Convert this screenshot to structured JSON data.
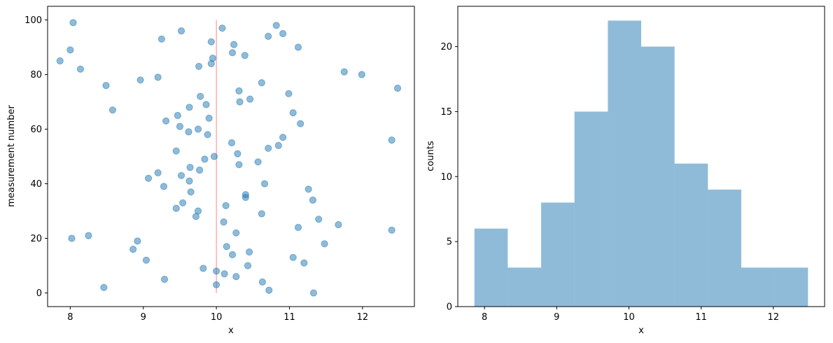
{
  "colors": {
    "points": "#1f77b4",
    "bars": "#1f77b4",
    "refline": "#ff9999",
    "axes": "#000000"
  },
  "chart_data": [
    {
      "type": "scatter",
      "xlabel": "x",
      "ylabel": "measurement number",
      "xlim": [
        7.69,
        12.71
      ],
      "ylim": [
        -5,
        105
      ],
      "xticks": [
        8,
        9,
        10,
        11,
        12
      ],
      "yticks": [
        0,
        20,
        40,
        60,
        80,
        100
      ],
      "grid": false,
      "reference_line": {
        "x": 10,
        "y_from": 0,
        "y_to": 100
      },
      "points": [
        [
          11.33,
          0
        ],
        [
          10.72,
          1
        ],
        [
          8.46,
          2
        ],
        [
          10.0,
          3
        ],
        [
          10.63,
          4
        ],
        [
          9.29,
          5
        ],
        [
          10.27,
          6
        ],
        [
          10.11,
          7
        ],
        [
          10.0,
          8
        ],
        [
          9.82,
          9
        ],
        [
          10.43,
          10
        ],
        [
          11.2,
          11
        ],
        [
          9.04,
          12
        ],
        [
          11.05,
          13
        ],
        [
          10.22,
          14
        ],
        [
          10.45,
          15
        ],
        [
          8.86,
          16
        ],
        [
          10.14,
          17
        ],
        [
          11.48,
          18
        ],
        [
          8.92,
          19
        ],
        [
          8.02,
          20
        ],
        [
          8.25,
          21
        ],
        [
          10.27,
          22
        ],
        [
          12.4,
          23
        ],
        [
          11.12,
          24
        ],
        [
          11.67,
          25
        ],
        [
          10.1,
          26
        ],
        [
          11.4,
          27
        ],
        [
          9.72,
          28
        ],
        [
          10.62,
          29
        ],
        [
          9.75,
          30
        ],
        [
          9.45,
          31
        ],
        [
          10.13,
          32
        ],
        [
          9.54,
          33
        ],
        [
          11.32,
          34
        ],
        [
          10.4,
          35
        ],
        [
          10.4,
          36
        ],
        [
          9.65,
          37
        ],
        [
          11.26,
          38
        ],
        [
          9.28,
          39
        ],
        [
          10.66,
          40
        ],
        [
          9.63,
          41
        ],
        [
          9.07,
          42
        ],
        [
          9.52,
          43
        ],
        [
          9.2,
          44
        ],
        [
          9.77,
          45
        ],
        [
          9.64,
          46
        ],
        [
          10.31,
          47
        ],
        [
          10.57,
          48
        ],
        [
          9.84,
          49
        ],
        [
          9.97,
          50
        ],
        [
          10.29,
          51
        ],
        [
          9.45,
          52
        ],
        [
          10.71,
          53
        ],
        [
          10.85,
          54
        ],
        [
          10.21,
          55
        ],
        [
          12.4,
          56
        ],
        [
          10.91,
          57
        ],
        [
          9.88,
          58
        ],
        [
          9.62,
          59
        ],
        [
          9.75,
          60
        ],
        [
          9.5,
          61
        ],
        [
          11.15,
          62
        ],
        [
          9.31,
          63
        ],
        [
          9.9,
          64
        ],
        [
          9.47,
          65
        ],
        [
          11.05,
          66
        ],
        [
          8.58,
          67
        ],
        [
          9.63,
          68
        ],
        [
          9.86,
          69
        ],
        [
          10.32,
          70
        ],
        [
          10.46,
          71
        ],
        [
          9.78,
          72
        ],
        [
          10.99,
          73
        ],
        [
          10.31,
          74
        ],
        [
          12.48,
          75
        ],
        [
          8.49,
          76
        ],
        [
          10.62,
          77
        ],
        [
          8.96,
          78
        ],
        [
          9.2,
          79
        ],
        [
          11.99,
          80
        ],
        [
          11.75,
          81
        ],
        [
          8.14,
          82
        ],
        [
          9.76,
          83
        ],
        [
          9.93,
          84
        ],
        [
          7.86,
          85
        ],
        [
          9.95,
          86
        ],
        [
          10.39,
          87
        ],
        [
          10.22,
          88
        ],
        [
          8.0,
          89
        ],
        [
          11.12,
          90
        ],
        [
          10.24,
          91
        ],
        [
          9.93,
          92
        ],
        [
          9.25,
          93
        ],
        [
          10.71,
          94
        ],
        [
          10.91,
          95
        ],
        [
          9.52,
          96
        ],
        [
          10.08,
          97
        ],
        [
          10.82,
          98
        ],
        [
          8.04,
          99
        ]
      ]
    },
    {
      "type": "bar",
      "subtype": "histogram",
      "xlabel": "x",
      "ylabel": "counts",
      "xlim": [
        7.63,
        12.71
      ],
      "ylim": [
        0,
        23.1
      ],
      "xticks": [
        8,
        9,
        10,
        11,
        12
      ],
      "yticks": [
        0,
        5,
        10,
        15,
        20
      ],
      "grid": false,
      "bin_edges": [
        7.86,
        8.322,
        8.784,
        9.246,
        9.708,
        10.17,
        10.632,
        11.094,
        11.556,
        12.018,
        12.48
      ],
      "values": [
        6,
        3,
        8,
        15,
        22,
        20,
        11,
        9,
        3,
        3
      ]
    }
  ]
}
